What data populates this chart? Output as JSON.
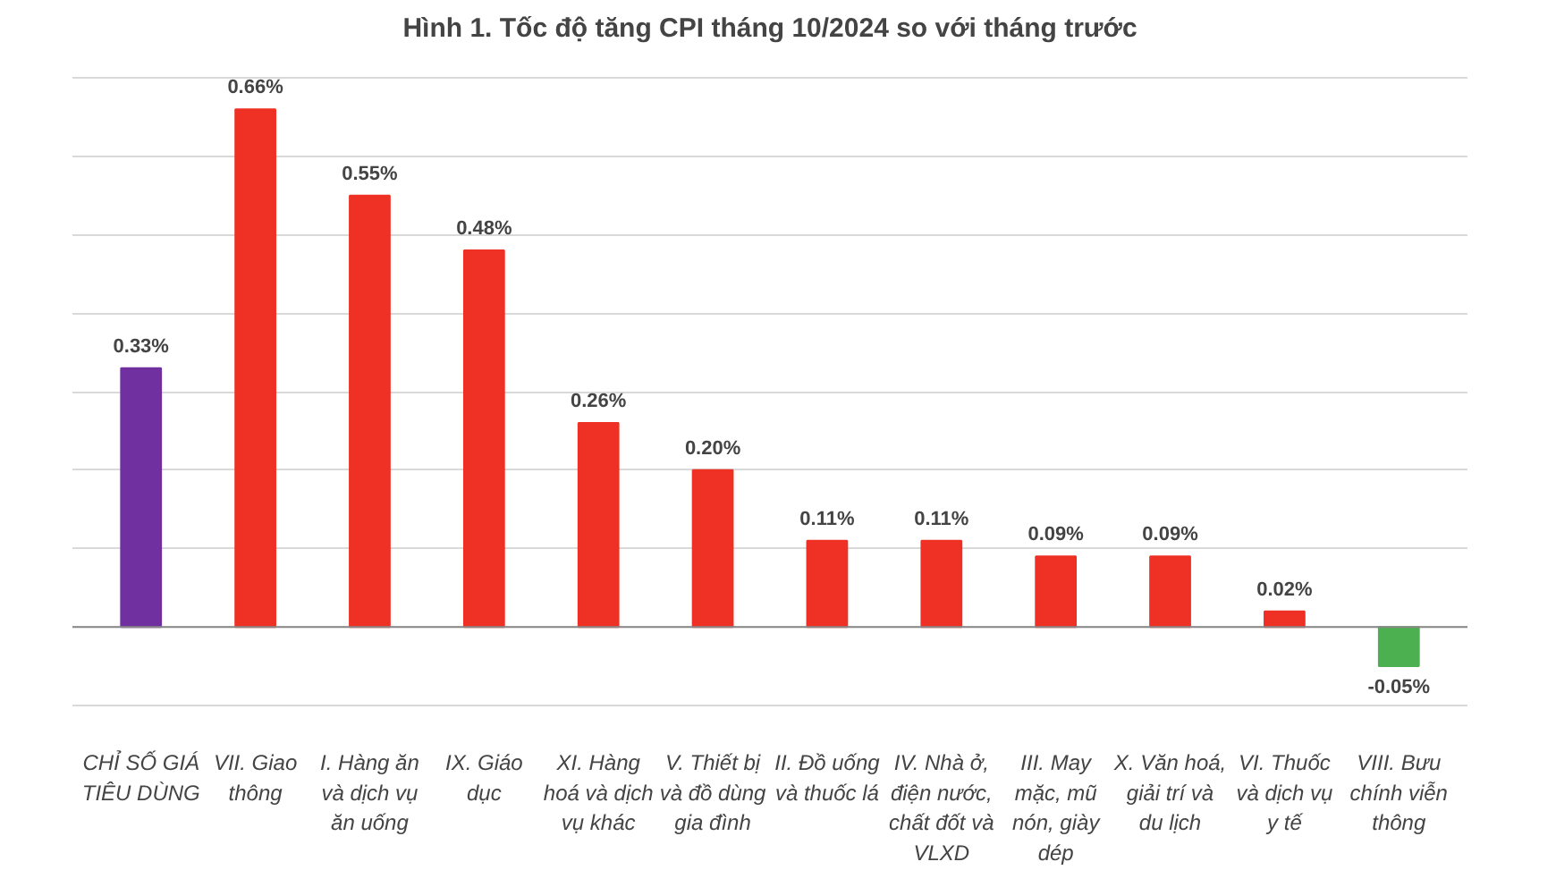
{
  "chart_data": {
    "type": "bar",
    "title": "Hình 1. Tốc độ tăng CPI tháng 10/2024 so với tháng trước",
    "categories": [
      "CHỈ SỐ GIÁ TIÊU DÙNG",
      "VII. Giao thông",
      "I. Hàng ăn và dịch vụ ăn uống",
      "IX. Giáo dục",
      "XI. Hàng hoá và dịch vụ khác",
      "V. Thiết bị và đồ dùng gia đình",
      "II. Đồ uống và thuốc lá",
      "IV. Nhà ở, điện nước, chất đốt và VLXD",
      "III. May mặc, mũ nón, giày dép",
      "X. Văn hoá, giải trí và du lịch",
      "VI. Thuốc và dịch vụ y tế",
      "VIII. Bưu chính viễn thông"
    ],
    "values": [
      0.33,
      0.66,
      0.55,
      0.48,
      0.26,
      0.2,
      0.11,
      0.11,
      0.09,
      0.09,
      0.02,
      -0.05
    ],
    "colors": [
      "#7030a0",
      "#ee3124",
      "#ee3124",
      "#ee3124",
      "#ee3124",
      "#ee3124",
      "#ee3124",
      "#ee3124",
      "#ee3124",
      "#ee3124",
      "#ee3124",
      "#4caf50"
    ],
    "value_labels": [
      "0.33%",
      "0.66%",
      "0.55%",
      "0.48%",
      "0.26%",
      "0.20%",
      "0.11%",
      "0.11%",
      "0.09%",
      "0.09%",
      "0.02%",
      "-0.05%"
    ],
    "yticks": [
      {
        "value": -0.1,
        "label": null
      },
      {
        "value": 0,
        "label": null
      },
      {
        "value": 0.1,
        "label": null
      },
      {
        "value": 0.2,
        "label": null
      },
      {
        "value": 0.3,
        "label": null
      },
      {
        "value": 0.4,
        "label": null
      },
      {
        "value": 0.5,
        "label": null
      },
      {
        "value": 0.6,
        "label": null
      },
      {
        "value": 0.7,
        "label": null
      }
    ],
    "grid": "y",
    "tick_labels": "x"
  }
}
